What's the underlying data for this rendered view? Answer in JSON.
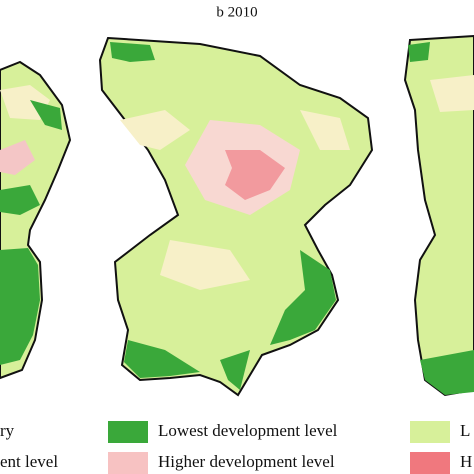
{
  "title": "b 2010",
  "legend": {
    "left": [
      "ry",
      "ent level"
    ],
    "center": [
      "Lowest development level",
      "Higher development level"
    ],
    "right": [
      "L",
      "H"
    ]
  }
}
